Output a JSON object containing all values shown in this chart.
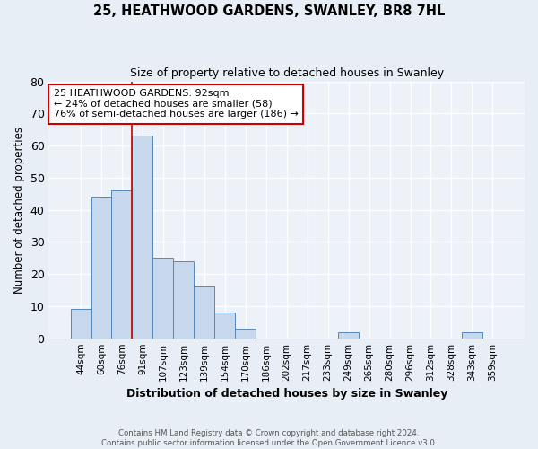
{
  "title1": "25, HEATHWOOD GARDENS, SWANLEY, BR8 7HL",
  "title2": "Size of property relative to detached houses in Swanley",
  "xlabel": "Distribution of detached houses by size in Swanley",
  "ylabel": "Number of detached properties",
  "categories": [
    "44sqm",
    "60sqm",
    "76sqm",
    "91sqm",
    "107sqm",
    "123sqm",
    "139sqm",
    "154sqm",
    "170sqm",
    "186sqm",
    "202sqm",
    "217sqm",
    "233sqm",
    "249sqm",
    "265sqm",
    "280sqm",
    "296sqm",
    "312sqm",
    "328sqm",
    "343sqm",
    "359sqm"
  ],
  "values": [
    9,
    44,
    46,
    63,
    25,
    24,
    16,
    8,
    3,
    0,
    0,
    0,
    0,
    2,
    0,
    0,
    0,
    0,
    0,
    2,
    0
  ],
  "bar_color": "#c8d8ec",
  "bar_edge_color": "#5588bb",
  "ylim": [
    0,
    80
  ],
  "yticks": [
    0,
    10,
    20,
    30,
    40,
    50,
    60,
    70,
    80
  ],
  "red_line_index": 3,
  "annotation_text": "25 HEATHWOOD GARDENS: 92sqm\n← 24% of detached houses are smaller (58)\n76% of semi-detached houses are larger (186) →",
  "annotation_box_color": "#ffffff",
  "annotation_box_edge": "#cc0000",
  "footer1": "Contains HM Land Registry data © Crown copyright and database right 2024.",
  "footer2": "Contains public sector information licensed under the Open Government Licence v3.0.",
  "bg_color": "#e8eef5",
  "plot_bg_color": "#edf2f9",
  "grid_color": "#d0d8e8"
}
